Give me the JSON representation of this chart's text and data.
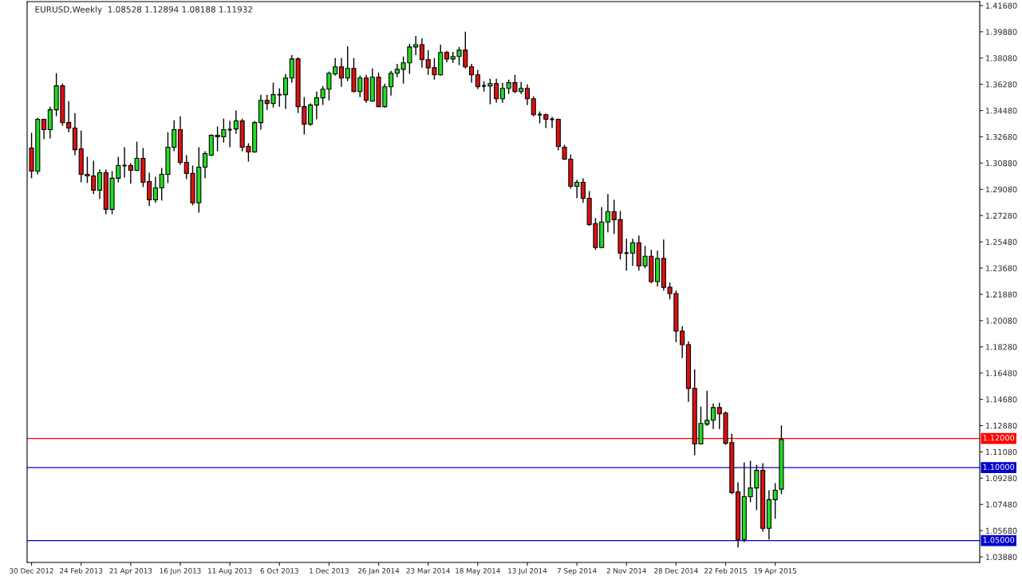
{
  "chart_data": {
    "type": "candlestick",
    "title": "EURUSD,Weekly  1.08528 1.12894 1.08188 1.11932",
    "x": [
      "2012-12-30",
      "2013-01-06",
      "2013-01-13",
      "2013-01-20",
      "2013-01-27",
      "2013-02-03",
      "2013-02-10",
      "2013-02-17",
      "2013-02-24",
      "2013-03-03",
      "2013-03-10",
      "2013-03-17",
      "2013-03-24",
      "2013-03-31",
      "2013-04-07",
      "2013-04-14",
      "2013-04-21",
      "2013-04-28",
      "2013-05-05",
      "2013-05-12",
      "2013-05-19",
      "2013-05-26",
      "2013-06-02",
      "2013-06-09",
      "2013-06-16",
      "2013-06-23",
      "2013-06-30",
      "2013-07-07",
      "2013-07-14",
      "2013-07-21",
      "2013-07-28",
      "2013-08-04",
      "2013-08-11",
      "2013-08-18",
      "2013-08-25",
      "2013-09-01",
      "2013-09-08",
      "2013-09-15",
      "2013-09-22",
      "2013-09-29",
      "2013-10-06",
      "2013-10-13",
      "2013-10-20",
      "2013-10-27",
      "2013-11-03",
      "2013-11-10",
      "2013-11-17",
      "2013-11-24",
      "2013-12-01",
      "2013-12-08",
      "2013-12-15",
      "2013-12-22",
      "2013-12-29",
      "2014-01-05",
      "2014-01-12",
      "2014-01-19",
      "2014-01-26",
      "2014-02-02",
      "2014-02-09",
      "2014-02-16",
      "2014-02-23",
      "2014-03-02",
      "2014-03-09",
      "2014-03-16",
      "2014-03-23",
      "2014-03-30",
      "2014-04-06",
      "2014-04-13",
      "2014-04-20",
      "2014-04-27",
      "2014-05-04",
      "2014-05-11",
      "2014-05-18",
      "2014-05-25",
      "2014-06-01",
      "2014-06-08",
      "2014-06-15",
      "2014-06-22",
      "2014-06-29",
      "2014-07-06",
      "2014-07-13",
      "2014-07-20",
      "2014-07-27",
      "2014-08-03",
      "2014-08-10",
      "2014-08-17",
      "2014-08-24",
      "2014-08-31",
      "2014-09-07",
      "2014-09-14",
      "2014-09-21",
      "2014-09-28",
      "2014-10-05",
      "2014-10-12",
      "2014-10-19",
      "2014-10-26",
      "2014-11-02",
      "2014-11-09",
      "2014-11-16",
      "2014-11-23",
      "2014-11-30",
      "2014-12-07",
      "2014-12-14",
      "2014-12-21",
      "2014-12-28",
      "2015-01-04",
      "2015-01-11",
      "2015-01-18",
      "2015-01-25",
      "2015-02-01",
      "2015-02-08",
      "2015-02-15",
      "2015-02-22",
      "2015-03-01",
      "2015-03-08",
      "2015-03-15",
      "2015-03-22",
      "2015-03-29",
      "2015-04-05",
      "2015-04-12",
      "2015-04-19",
      "2015-04-26"
    ],
    "ohlc": [
      [
        1.3191,
        1.3295,
        1.2984,
        1.3033
      ],
      [
        1.3033,
        1.3398,
        1.3011,
        1.3388
      ],
      [
        1.3388,
        1.3393,
        1.3251,
        1.3317
      ],
      [
        1.3317,
        1.3475,
        1.3257,
        1.3453
      ],
      [
        1.3453,
        1.3704,
        1.3409,
        1.3617
      ],
      [
        1.3617,
        1.3633,
        1.3344,
        1.3366
      ],
      [
        1.3366,
        1.3513,
        1.33,
        1.3328
      ],
      [
        1.3328,
        1.3431,
        1.3142,
        1.318
      ],
      [
        1.3186,
        1.3311,
        1.2956,
        1.3011
      ],
      [
        1.3011,
        1.3131,
        1.2951,
        1.3
      ],
      [
        1.3,
        1.3104,
        1.2875,
        1.2902
      ],
      [
        1.2902,
        1.3044,
        1.2842,
        1.3022
      ],
      [
        1.3022,
        1.3044,
        1.2738,
        1.2771
      ],
      [
        1.2771,
        1.3033,
        1.2738,
        1.2984
      ],
      [
        1.2984,
        1.3131,
        1.2956,
        1.3071
      ],
      [
        1.3071,
        1.3197,
        1.2989,
        1.3071
      ],
      [
        1.3071,
        1.3087,
        1.2946,
        1.3038
      ],
      [
        1.3038,
        1.3235,
        1.3033,
        1.312
      ],
      [
        1.312,
        1.3191,
        1.2924,
        1.2956
      ],
      [
        1.2962,
        1.3022,
        1.2793,
        1.2836
      ],
      [
        1.2836,
        1.2995,
        1.2815,
        1.2918
      ],
      [
        1.2918,
        1.3055,
        1.2831,
        1.3011
      ],
      [
        1.3011,
        1.33,
        1.2951,
        1.3197
      ],
      [
        1.3197,
        1.3382,
        1.3169,
        1.3317
      ],
      [
        1.3317,
        1.3409,
        1.3077,
        1.3093
      ],
      [
        1.3093,
        1.3142,
        1.2978,
        1.3017
      ],
      [
        1.3017,
        1.3071,
        1.2798,
        1.2815
      ],
      [
        1.2815,
        1.3197,
        1.2749,
        1.306
      ],
      [
        1.306,
        1.3169,
        1.2984,
        1.3153
      ],
      [
        1.3142,
        1.3284,
        1.3137,
        1.3278
      ],
      [
        1.3278,
        1.3339,
        1.3169,
        1.3268
      ],
      [
        1.3268,
        1.3393,
        1.3229,
        1.3317
      ],
      [
        1.3317,
        1.3377,
        1.3197,
        1.3317
      ],
      [
        1.3322,
        1.3448,
        1.3289,
        1.3377
      ],
      [
        1.3377,
        1.3393,
        1.3169,
        1.3197
      ],
      [
        1.3202,
        1.3224,
        1.3098,
        1.3164
      ],
      [
        1.3164,
        1.3377,
        1.3159,
        1.3366
      ],
      [
        1.3366,
        1.3557,
        1.3317,
        1.3518
      ],
      [
        1.3518,
        1.3557,
        1.3453,
        1.3497
      ],
      [
        1.3497,
        1.3639,
        1.3469,
        1.3557
      ],
      [
        1.3557,
        1.36,
        1.3475,
        1.3557
      ],
      [
        1.3557,
        1.3699,
        1.3459,
        1.3671
      ],
      [
        1.3671,
        1.3829,
        1.3639,
        1.3802
      ],
      [
        1.3802,
        1.3813,
        1.3431,
        1.3475
      ],
      [
        1.3475,
        1.354,
        1.3284,
        1.3355
      ],
      [
        1.3355,
        1.3497,
        1.3344,
        1.3486
      ],
      [
        1.3486,
        1.3578,
        1.3388,
        1.3535
      ],
      [
        1.3535,
        1.3617,
        1.3486,
        1.3595
      ],
      [
        1.3595,
        1.3715,
        1.3518,
        1.3704
      ],
      [
        1.3699,
        1.3808,
        1.3688,
        1.3748
      ],
      [
        1.3748,
        1.3808,
        1.3611,
        1.3671
      ],
      [
        1.3671,
        1.3889,
        1.3649,
        1.3737
      ],
      [
        1.3737,
        1.3808,
        1.3573,
        1.3578
      ],
      [
        1.3578,
        1.3688,
        1.354,
        1.3671
      ],
      [
        1.3671,
        1.3693,
        1.3502,
        1.3518
      ],
      [
        1.3513,
        1.3737,
        1.3508,
        1.3677
      ],
      [
        1.3677,
        1.3709,
        1.3475,
        1.3475
      ],
      [
        1.3475,
        1.3633,
        1.3469,
        1.3611
      ],
      [
        1.3611,
        1.372,
        1.3551,
        1.3704
      ],
      [
        1.3704,
        1.3769,
        1.3677,
        1.3731
      ],
      [
        1.3731,
        1.3819,
        1.3633,
        1.3775
      ],
      [
        1.3775,
        1.3906,
        1.3699,
        1.3884
      ],
      [
        1.3884,
        1.396,
        1.3829,
        1.39
      ],
      [
        1.39,
        1.3944,
        1.3742,
        1.3797
      ],
      [
        1.3797,
        1.3862,
        1.3693,
        1.3742
      ],
      [
        1.3742,
        1.3808,
        1.366,
        1.3693
      ],
      [
        1.3693,
        1.39,
        1.3688,
        1.3846
      ],
      [
        1.3846,
        1.3857,
        1.378,
        1.3802
      ],
      [
        1.3802,
        1.3851,
        1.3775,
        1.3819
      ],
      [
        1.3819,
        1.3884,
        1.3759,
        1.3862
      ],
      [
        1.3862,
        1.3988,
        1.3737,
        1.3748
      ],
      [
        1.3748,
        1.3769,
        1.3639,
        1.3693
      ],
      [
        1.3693,
        1.3726,
        1.3595,
        1.3611
      ],
      [
        1.3617,
        1.3649,
        1.3578,
        1.3617
      ],
      [
        1.3617,
        1.3666,
        1.3491,
        1.3633
      ],
      [
        1.3633,
        1.3666,
        1.3502,
        1.3529
      ],
      [
        1.3529,
        1.3639,
        1.3502,
        1.36
      ],
      [
        1.36,
        1.366,
        1.3562,
        1.3639
      ],
      [
        1.3639,
        1.3693,
        1.3568,
        1.3578
      ],
      [
        1.3578,
        1.3644,
        1.3562,
        1.36
      ],
      [
        1.36,
        1.3628,
        1.3486,
        1.3529
      ],
      [
        1.3529,
        1.3546,
        1.3409,
        1.342
      ],
      [
        1.342,
        1.3442,
        1.336,
        1.342
      ],
      [
        1.342,
        1.3426,
        1.3328,
        1.3388
      ],
      [
        1.3388,
        1.3404,
        1.3328,
        1.3388
      ],
      [
        1.3388,
        1.3393,
        1.3175,
        1.3202
      ],
      [
        1.3197,
        1.3213,
        1.3109,
        1.3115
      ],
      [
        1.3115,
        1.3147,
        1.2913,
        1.2929
      ],
      [
        1.2929,
        1.2973,
        1.2847,
        1.2956
      ],
      [
        1.2956,
        1.2984,
        1.2815,
        1.2847
      ],
      [
        1.2847,
        1.2896,
        1.2656,
        1.2667
      ],
      [
        1.2673,
        1.2711,
        1.2493,
        1.2509
      ],
      [
        1.2509,
        1.2787,
        1.2504,
        1.2684
      ],
      [
        1.2684,
        1.2875,
        1.2613,
        1.2755
      ],
      [
        1.2755,
        1.2836,
        1.2602,
        1.27
      ],
      [
        1.27,
        1.276,
        1.2427,
        1.2471
      ],
      [
        1.2471,
        1.2569,
        1.2351,
        1.2471
      ],
      [
        1.2471,
        1.2569,
        1.2383,
        1.2542
      ],
      [
        1.2542,
        1.2591,
        1.2351,
        1.2383
      ],
      [
        1.2383,
        1.252,
        1.2367,
        1.2449
      ],
      [
        1.2449,
        1.2493,
        1.2264,
        1.2275
      ],
      [
        1.2275,
        1.2487,
        1.2242,
        1.2433
      ],
      [
        1.2433,
        1.2564,
        1.2214,
        1.2236
      ],
      [
        1.2236,
        1.2269,
        1.2154,
        1.2193
      ],
      [
        1.2193,
        1.2214,
        1.186,
        1.1936
      ],
      [
        1.1936,
        1.1969,
        1.1751,
        1.1843
      ],
      [
        1.1843,
        1.1865,
        1.1451,
        1.1543
      ],
      [
        1.1543,
        1.1674,
        1.1085,
        1.1162
      ],
      [
        1.1162,
        1.1418,
        1.1162,
        1.1303
      ],
      [
        1.1298,
        1.1527,
        1.1287,
        1.1325
      ],
      [
        1.1325,
        1.144,
        1.1265,
        1.1412
      ],
      [
        1.1412,
        1.1445,
        1.1265,
        1.1369
      ],
      [
        1.1374,
        1.1385,
        1.1156,
        1.1167
      ],
      [
        1.1172,
        1.1232,
        1.0818,
        1.0829
      ],
      [
        1.0834,
        1.09,
        1.0452,
        1.0507
      ],
      [
        1.0507,
        1.1036,
        1.049,
        1.0801
      ],
      [
        1.0801,
        1.1047,
        1.0763,
        1.0861
      ],
      [
        1.0861,
        1.102,
        1.0709,
        1.0981
      ],
      [
        1.0981,
        1.1031,
        1.0562,
        1.0584
      ],
      [
        1.0584,
        1.0845,
        1.0507,
        1.078
      ],
      [
        1.078,
        1.0894,
        1.0649,
        1.0845
      ],
      [
        1.08528,
        1.12894,
        1.08188,
        1.11932
      ]
    ],
    "xlim": [
      "2012-12-25",
      "2015-12-06"
    ],
    "ylim": [
      1.035,
      1.4195
    ],
    "xticks": [
      {
        "value": "2012-12-30",
        "label": "30 Dec 2012"
      },
      {
        "value": "2013-02-24",
        "label": "24 Feb 2013"
      },
      {
        "value": "2013-04-21",
        "label": "21 Apr 2013"
      },
      {
        "value": "2013-06-16",
        "label": "16 Jun 2013"
      },
      {
        "value": "2013-08-11",
        "label": "11 Aug 2013"
      },
      {
        "value": "2013-10-06",
        "label": "6 Oct 2013"
      },
      {
        "value": "2013-12-01",
        "label": "1 Dec 2013"
      },
      {
        "value": "2014-01-26",
        "label": "26 Jan 2014"
      },
      {
        "value": "2014-03-23",
        "label": "23 Mar 2014"
      },
      {
        "value": "2014-05-18",
        "label": "18 May 2014"
      },
      {
        "value": "2014-07-13",
        "label": "13 Jul 2014"
      },
      {
        "value": "2014-09-07",
        "label": "7 Sep 2014"
      },
      {
        "value": "2014-11-02",
        "label": "2 Nov 2014"
      },
      {
        "value": "2014-12-28",
        "label": "28 Dec 2014"
      },
      {
        "value": "2015-02-22",
        "label": "22 Feb 2015"
      },
      {
        "value": "2015-04-19",
        "label": "19 Apr 2015"
      }
    ],
    "yticks": [
      {
        "value": 1.0388,
        "label": "1.03880"
      },
      {
        "value": 1.0568,
        "label": "1.05680"
      },
      {
        "value": 1.0748,
        "label": "1.07480"
      },
      {
        "value": 1.0928,
        "label": "1.09280"
      },
      {
        "value": 1.1108,
        "label": "1.11080"
      },
      {
        "value": 1.1288,
        "label": "1.12880"
      },
      {
        "value": 1.1468,
        "label": "1.14680"
      },
      {
        "value": 1.1648,
        "label": "1.16480"
      },
      {
        "value": 1.1828,
        "label": "1.18280"
      },
      {
        "value": 1.2008,
        "label": "1.20080"
      },
      {
        "value": 1.2188,
        "label": "1.21880"
      },
      {
        "value": 1.2368,
        "label": "1.23680"
      },
      {
        "value": 1.2548,
        "label": "1.25480"
      },
      {
        "value": 1.2728,
        "label": "1.27280"
      },
      {
        "value": 1.2908,
        "label": "1.29080"
      },
      {
        "value": 1.3088,
        "label": "1.30880"
      },
      {
        "value": 1.3268,
        "label": "1.32680"
      },
      {
        "value": 1.3448,
        "label": "1.34480"
      },
      {
        "value": 1.3628,
        "label": "1.36280"
      },
      {
        "value": 1.3808,
        "label": "1.38080"
      },
      {
        "value": 1.3988,
        "label": "1.39880"
      },
      {
        "value": 1.4168,
        "label": "1.41680"
      }
    ],
    "ref_lines": [
      {
        "axis": "y",
        "value": 1.12,
        "label": "1.12000",
        "color": "#ff0000"
      },
      {
        "axis": "y",
        "value": 1.1,
        "label": "1.10000",
        "color": "#0000cc"
      },
      {
        "axis": "y",
        "value": 1.05,
        "label": "1.05000",
        "color": "#0000cc"
      }
    ]
  }
}
